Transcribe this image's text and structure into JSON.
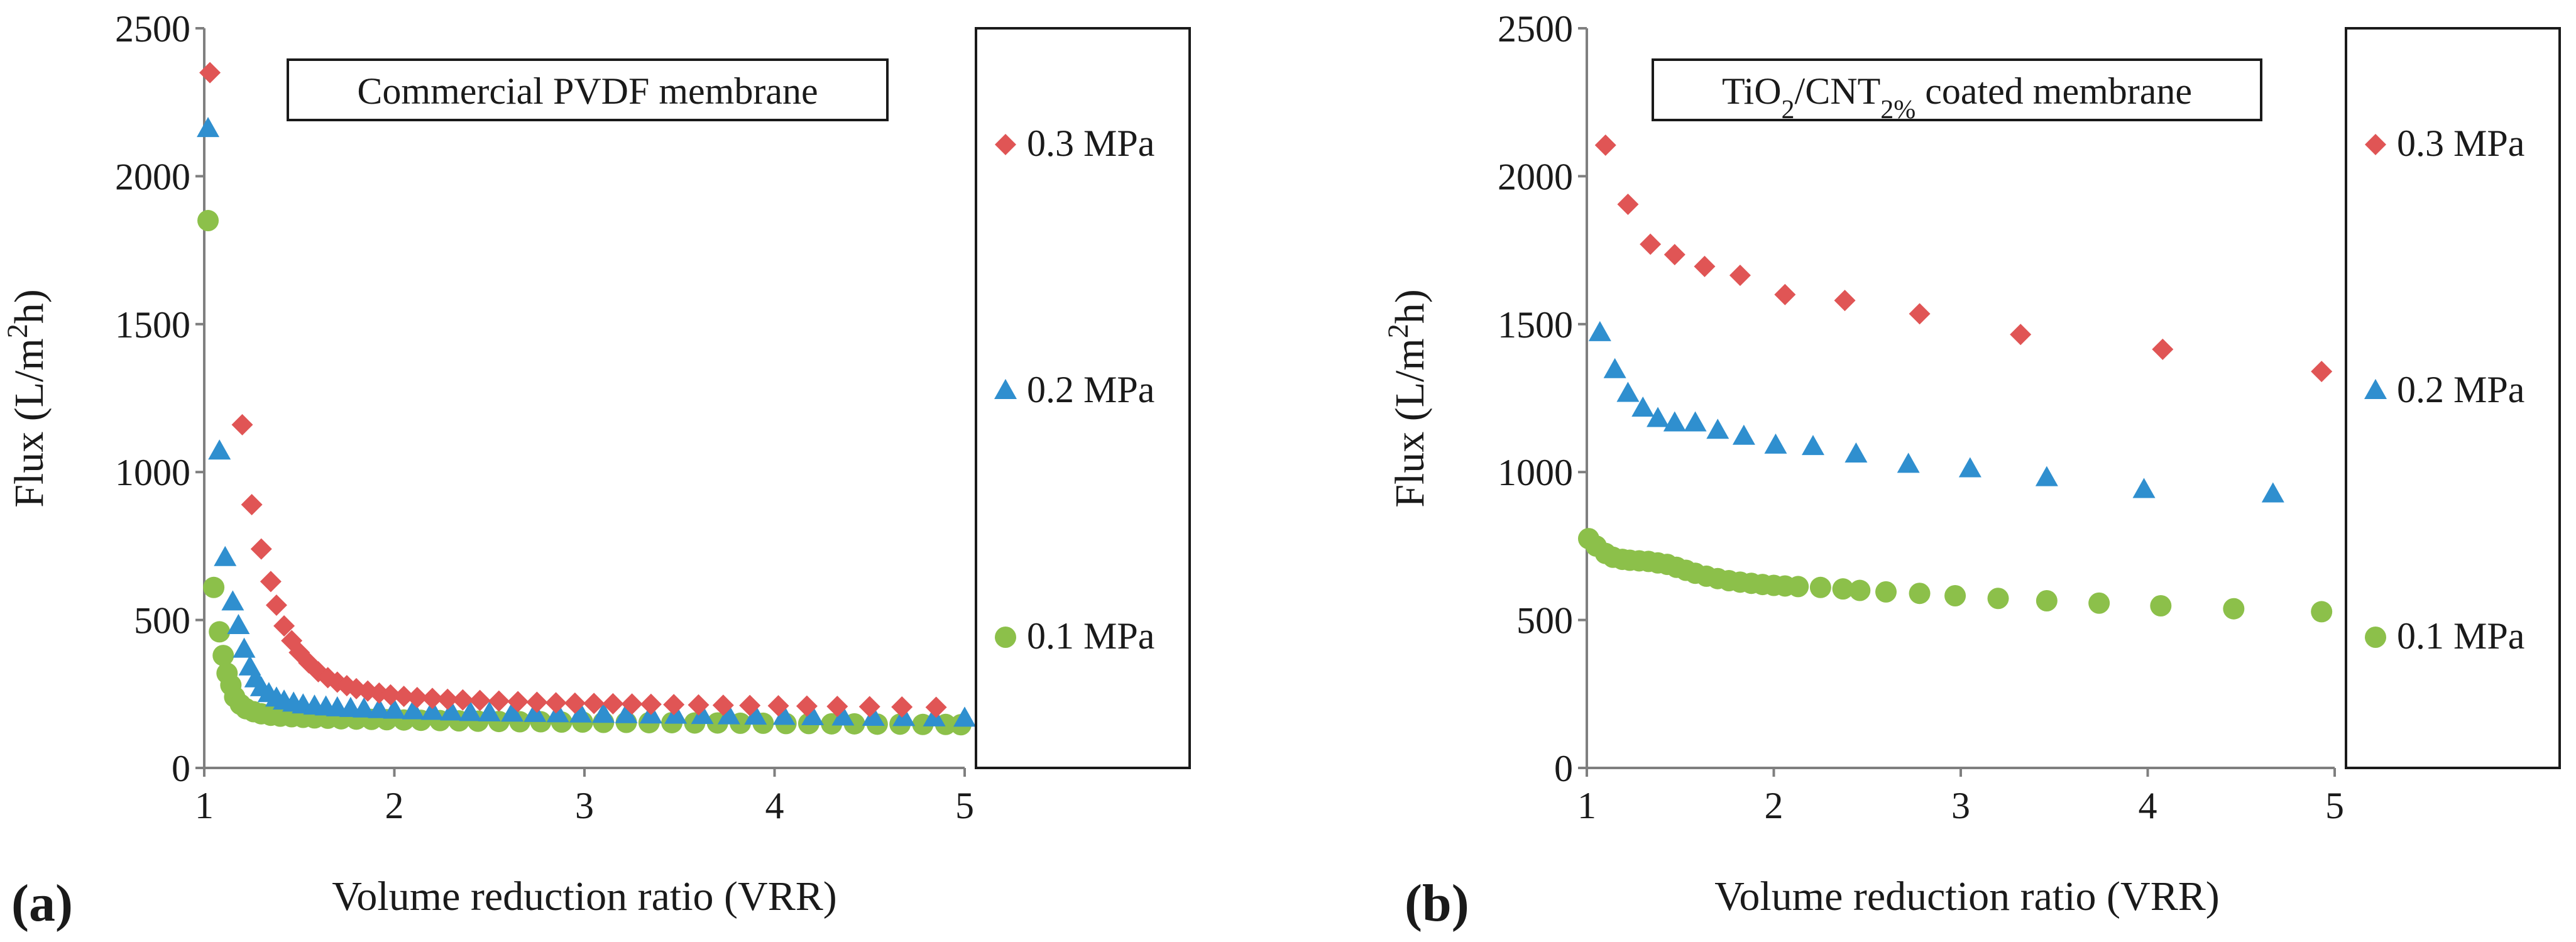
{
  "panel_labels": [
    "(a)",
    "(b)"
  ],
  "colors": {
    "series_03": "#e05555",
    "series_02": "#2f8fcf",
    "series_01": "#8cc04a",
    "axis": "#7f7f7f",
    "text": "#1a1a1a"
  },
  "chart_data": [
    {
      "type": "scatter",
      "panel": "(a)",
      "title": "Commercial PVDF membrane",
      "title_parts": [
        {
          "text": "Commercial PVDF membrane"
        }
      ],
      "xlabel": "Volume reduction ratio (VRR)",
      "ylabel": "Flux (L/m²h)",
      "ylabel_parts": [
        {
          "text": "Flux (L/m"
        },
        {
          "text": "2",
          "sup": true
        },
        {
          "text": "h)"
        }
      ],
      "xlim": [
        1,
        5
      ],
      "ylim": [
        0,
        2500
      ],
      "xticks": [
        "1",
        "2",
        "3",
        "4",
        "5"
      ],
      "yticks": [
        "0",
        "500",
        "1000",
        "1500",
        "2000",
        "2500"
      ],
      "gridlines": false,
      "legend_position": "right",
      "series": [
        {
          "name": "0.3 MPa",
          "marker": "diamond",
          "color": "#e05555",
          "x": [
            1.03,
            1.2,
            1.25,
            1.3,
            1.35,
            1.38,
            1.42,
            1.46,
            1.5,
            1.55,
            1.6,
            1.65,
            1.7,
            1.75,
            1.8,
            1.86,
            1.92,
            1.98,
            2.05,
            2.12,
            2.2,
            2.28,
            2.36,
            2.45,
            2.55,
            2.65,
            2.75,
            2.85,
            2.95,
            3.05,
            3.15,
            3.25,
            3.35,
            3.47,
            3.6,
            3.73,
            3.87,
            4.02,
            4.17,
            4.33,
            4.5,
            4.67,
            4.85
          ],
          "y": [
            2350,
            1160,
            890,
            740,
            630,
            550,
            480,
            430,
            390,
            355,
            325,
            305,
            290,
            278,
            268,
            260,
            253,
            247,
            242,
            238,
            235,
            232,
            230,
            228,
            226,
            224,
            222,
            220,
            219,
            218,
            217,
            216,
            215,
            214,
            213,
            212,
            211,
            210,
            209,
            208,
            207,
            206,
            205
          ]
        },
        {
          "name": "0.2 MPa",
          "marker": "triangle",
          "color": "#2f8fcf",
          "x": [
            1.02,
            1.08,
            1.11,
            1.15,
            1.18,
            1.21,
            1.24,
            1.27,
            1.3,
            1.34,
            1.38,
            1.42,
            1.47,
            1.52,
            1.58,
            1.64,
            1.7,
            1.77,
            1.84,
            1.92,
            2.0,
            2.1,
            2.2,
            2.3,
            2.4,
            2.5,
            2.62,
            2.74,
            2.86,
            2.98,
            3.1,
            3.22,
            3.35,
            3.48,
            3.62,
            3.76,
            3.9,
            4.05,
            4.2,
            4.36,
            4.52,
            4.68,
            4.84,
            5.0
          ],
          "y": [
            2160,
            1070,
            710,
            560,
            480,
            400,
            340,
            300,
            270,
            250,
            235,
            225,
            218,
            212,
            208,
            205,
            202,
            200,
            198,
            196,
            194,
            192,
            190,
            188,
            186,
            185,
            184,
            183,
            182,
            181,
            180,
            179,
            178,
            177,
            176,
            175,
            174,
            173,
            172,
            171,
            170,
            169,
            168,
            167
          ]
        },
        {
          "name": "0.1 MPa",
          "marker": "circle",
          "color": "#8cc04a",
          "x": [
            1.02,
            1.05,
            1.08,
            1.1,
            1.12,
            1.14,
            1.16,
            1.19,
            1.22,
            1.26,
            1.3,
            1.35,
            1.4,
            1.46,
            1.52,
            1.58,
            1.65,
            1.72,
            1.8,
            1.88,
            1.96,
            2.05,
            2.14,
            2.24,
            2.34,
            2.44,
            2.55,
            2.66,
            2.77,
            2.88,
            2.99,
            3.1,
            3.22,
            3.34,
            3.46,
            3.58,
            3.7,
            3.82,
            3.94,
            4.06,
            4.18,
            4.3,
            4.42,
            4.54,
            4.66,
            4.78,
            4.9,
            4.98
          ],
          "y": [
            1850,
            610,
            460,
            380,
            320,
            280,
            240,
            215,
            200,
            190,
            183,
            178,
            175,
            173,
            171,
            169,
            168,
            166,
            165,
            164,
            163,
            162,
            161,
            160,
            159,
            158,
            157,
            156,
            156,
            155,
            155,
            154,
            154,
            153,
            153,
            152,
            152,
            151,
            151,
            150,
            150,
            149,
            149,
            148,
            148,
            147,
            147,
            146
          ]
        }
      ]
    },
    {
      "type": "scatter",
      "panel": "(b)",
      "title": "TiO2/CNT2% coated membrane",
      "title_parts": [
        {
          "text": "TiO"
        },
        {
          "text": "2",
          "sub": true
        },
        {
          "text": "/CNT"
        },
        {
          "text": "2%",
          "sub": true
        },
        {
          "text": " coated membrane"
        }
      ],
      "xlabel": "Volume reduction ratio (VRR)",
      "ylabel": "Flux (L/m²h)",
      "ylabel_parts": [
        {
          "text": "Flux (L/m"
        },
        {
          "text": "2",
          "sup": true
        },
        {
          "text": "h)"
        }
      ],
      "xlim": [
        1,
        5
      ],
      "ylim": [
        0,
        2500
      ],
      "xticks": [
        "1",
        "2",
        "3",
        "4",
        "5"
      ],
      "yticks": [
        "0",
        "500",
        "1000",
        "1500",
        "2000",
        "2500"
      ],
      "gridlines": false,
      "legend_position": "right",
      "series": [
        {
          "name": "0.3 MPa",
          "marker": "diamond",
          "color": "#e05555",
          "x": [
            1.1,
            1.22,
            1.34,
            1.47,
            1.63,
            1.82,
            2.06,
            2.38,
            2.78,
            3.32,
            4.08,
            4.93
          ],
          "y": [
            2105,
            1905,
            1770,
            1735,
            1695,
            1665,
            1600,
            1580,
            1535,
            1465,
            1415,
            1340
          ]
        },
        {
          "name": "0.2 MPa",
          "marker": "triangle",
          "color": "#2f8fcf",
          "x": [
            1.07,
            1.15,
            1.22,
            1.3,
            1.38,
            1.47,
            1.58,
            1.7,
            1.84,
            2.01,
            2.21,
            2.44,
            2.72,
            3.05,
            3.46,
            3.98,
            4.67
          ],
          "y": [
            1470,
            1345,
            1265,
            1215,
            1180,
            1165,
            1165,
            1140,
            1120,
            1090,
            1085,
            1060,
            1025,
            1010,
            980,
            940,
            925
          ]
        },
        {
          "name": "0.1 MPa",
          "marker": "circle",
          "color": "#8cc04a",
          "x": [
            1.01,
            1.05,
            1.1,
            1.14,
            1.19,
            1.23,
            1.28,
            1.33,
            1.38,
            1.43,
            1.48,
            1.53,
            1.58,
            1.64,
            1.7,
            1.76,
            1.82,
            1.88,
            1.94,
            2.0,
            2.06,
            2.13,
            2.25,
            2.37,
            2.46,
            2.6,
            2.78,
            2.97,
            3.2,
            3.46,
            3.74,
            4.07,
            4.46,
            4.93
          ],
          "y": [
            775,
            750,
            725,
            712,
            705,
            702,
            700,
            698,
            693,
            688,
            678,
            668,
            658,
            648,
            640,
            633,
            628,
            624,
            620,
            617,
            615,
            613,
            610,
            605,
            600,
            595,
            590,
            582,
            573,
            565,
            557,
            548,
            538,
            528
          ]
        }
      ]
    }
  ]
}
